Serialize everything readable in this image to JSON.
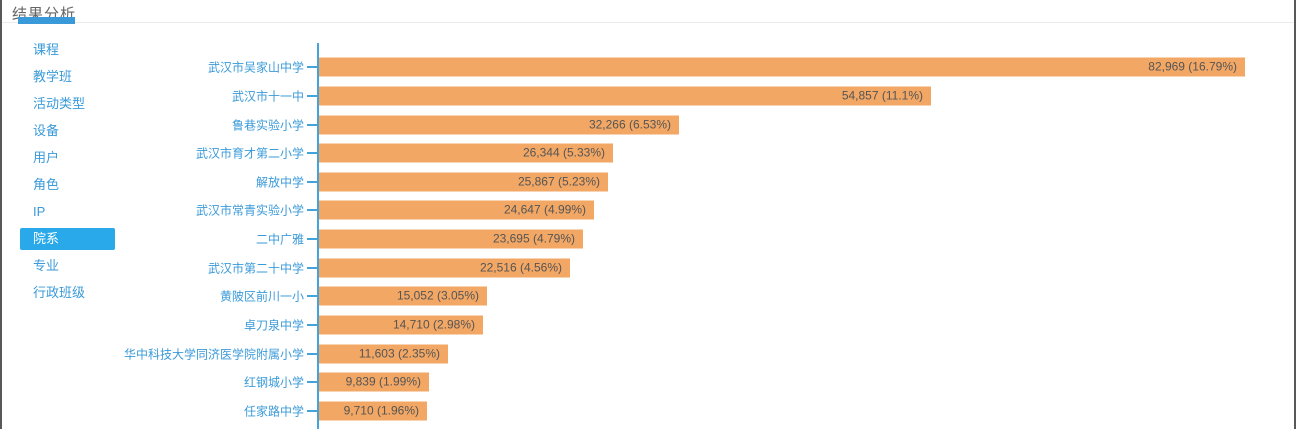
{
  "header": {
    "title": "结果分析"
  },
  "sidebar": {
    "items": [
      {
        "label": "课程",
        "active": false
      },
      {
        "label": "教学班",
        "active": false
      },
      {
        "label": "活动类型",
        "active": false
      },
      {
        "label": "设备",
        "active": false
      },
      {
        "label": "用户",
        "active": false
      },
      {
        "label": "角色",
        "active": false
      },
      {
        "label": "IP",
        "active": false
      },
      {
        "label": "院系",
        "active": true
      },
      {
        "label": "专业",
        "active": false
      },
      {
        "label": "行政班级",
        "active": false
      }
    ]
  },
  "chart_data": {
    "type": "bar",
    "orientation": "horizontal",
    "title": "",
    "xlabel": "",
    "ylabel": "",
    "legend": "none",
    "grid": "off",
    "xlim": [
      0,
      86000
    ],
    "categories": [
      "武汉市吴家山中学",
      "武汉市十一中",
      "鲁巷实验小学",
      "武汉市育才第二小学",
      "解放中学",
      "武汉市常青实验小学",
      "二中广雅",
      "武汉市第二十中学",
      "黄陂区前川一小",
      "卓刀泉中学",
      "华中科技大学同济医学院附属小学",
      "红钢城小学",
      "任家路中学"
    ],
    "values": [
      82969,
      54857,
      32266,
      26344,
      25867,
      24647,
      23695,
      22516,
      15052,
      14710,
      11603,
      9839,
      9710
    ],
    "percentages": [
      16.79,
      11.1,
      6.53,
      5.33,
      5.23,
      4.99,
      4.79,
      4.56,
      3.05,
      2.98,
      2.35,
      1.99,
      1.96
    ],
    "labels": [
      "82,969 (16.79%)",
      "54,857 (11.1%)",
      "32,266 (6.53%)",
      "26,344 (5.33%)",
      "25,867 (5.23%)",
      "24,647 (4.99%)",
      "23,695 (4.79%)",
      "22,516 (4.56%)",
      "15,052 (3.05%)",
      "14,710 (2.98%)",
      "11,603 (2.35%)",
      "9,839 (1.99%)",
      "9,710 (1.96%)"
    ]
  },
  "colors": {
    "bar_orange": "#f2a765",
    "axis_blue": "#45a3dc",
    "link_blue": "#3a9ad9",
    "active_item_bg": "#29a9e9",
    "title_text": "#666666",
    "value_text": "#555555",
    "separator": "#ebebeb",
    "window_border": "#58585a"
  }
}
